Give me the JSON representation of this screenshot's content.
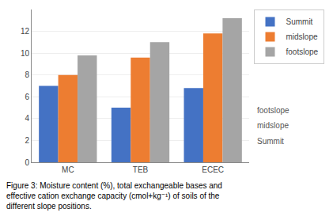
{
  "chart_data": {
    "type": "bar",
    "categories": [
      "MC",
      "TEB",
      "ECEC"
    ],
    "series": [
      {
        "name": "Summit",
        "color": "#4472C4",
        "values": [
          7.0,
          5.0,
          6.8
        ]
      },
      {
        "name": "midslope",
        "color": "#ED7D31",
        "values": [
          8.0,
          9.6,
          11.8
        ]
      },
      {
        "name": "footslope",
        "color": "#A5A5A5",
        "values": [
          9.8,
          11.0,
          13.2
        ]
      }
    ],
    "ylim": [
      0,
      14
    ],
    "yticks": [
      0,
      2,
      4,
      6,
      8,
      10,
      12
    ],
    "grid": true,
    "legend": "upper right",
    "annotations": [
      "footslope",
      "midslope",
      "Summit"
    ],
    "caption": [
      "Figure 3: Moisture content (%), total exchangeable bases and",
      "effective cation exchange capacity (cmol+kg⁻¹) of soils of the",
      "different slope positions."
    ]
  }
}
